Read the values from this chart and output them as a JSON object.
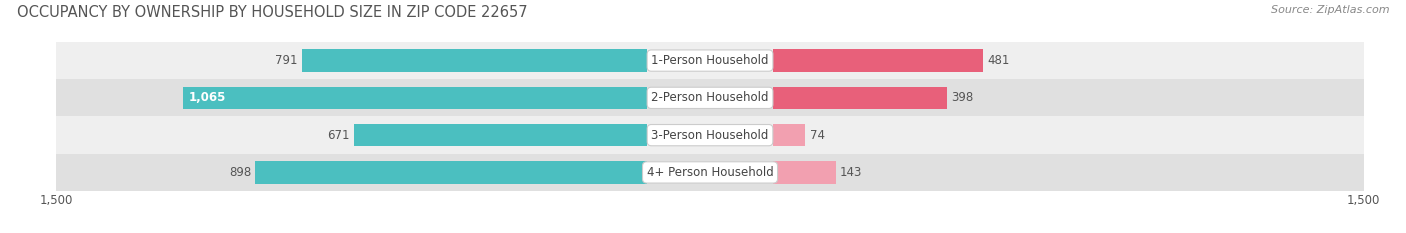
{
  "title": "OCCUPANCY BY OWNERSHIP BY HOUSEHOLD SIZE IN ZIP CODE 22657",
  "source": "Source: ZipAtlas.com",
  "categories": [
    "1-Person Household",
    "2-Person Household",
    "3-Person Household",
    "4+ Person Household"
  ],
  "owner_values": [
    791,
    1065,
    671,
    898
  ],
  "renter_values": [
    481,
    398,
    74,
    143
  ],
  "owner_color": "#4BBFC0",
  "renter_colors": [
    "#E8607A",
    "#E8607A",
    "#F2A0B0",
    "#F2A0B0"
  ],
  "row_bg_colors": [
    "#EFEFEF",
    "#E0E0E0",
    "#EFEFEF",
    "#E0E0E0"
  ],
  "max_scale": 1500,
  "title_fontsize": 10.5,
  "source_fontsize": 8,
  "label_fontsize": 8.5,
  "axis_fontsize": 8.5,
  "bar_height": 0.6,
  "fig_width": 14.06,
  "fig_height": 2.33
}
